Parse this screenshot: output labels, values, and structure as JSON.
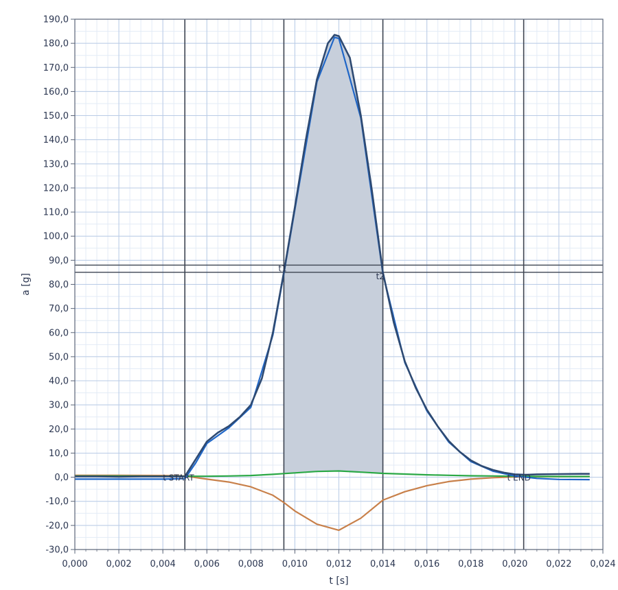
{
  "chart_data": {
    "type": "line",
    "title": "",
    "xlabel": "t [s]",
    "ylabel": "a [g]",
    "xlim": [
      0.0,
      0.024
    ],
    "ylim": [
      -30.0,
      190.0
    ],
    "grid": true,
    "x_ticks": [
      "0,000",
      "0,002",
      "0,004",
      "0,006",
      "0,008",
      "0,010",
      "0,012",
      "0,014",
      "0,016",
      "0,018",
      "0,020",
      "0,022",
      "0,024"
    ],
    "y_ticks": [
      "-30,0",
      "-20,0",
      "-10,0",
      "0,0",
      "10,0",
      "20,0",
      "30,0",
      "40,0",
      "50,0",
      "60,0",
      "70,0",
      "80,0",
      "90,0",
      "100,0",
      "110,0",
      "120,0",
      "130,0",
      "140,0",
      "150,0",
      "160,0",
      "170,0",
      "180,0",
      "190,0"
    ],
    "markers": {
      "t_start": {
        "label": "t START",
        "x": 0.005
      },
      "t1": {
        "label": "t1",
        "x": 0.0095
      },
      "t2": {
        "label": "t2",
        "x": 0.014
      },
      "t_end": {
        "label": "t END",
        "x": 0.0204
      }
    },
    "threshold_lines": [
      88.0,
      85.0
    ],
    "shaded_region": {
      "x_from": 0.0095,
      "x_to": 0.014
    },
    "series": [
      {
        "key": "resultant",
        "color": "#2e4a72",
        "points": [
          [
            0.0,
            0.3
          ],
          [
            0.001,
            0.3
          ],
          [
            0.002,
            0.2
          ],
          [
            0.003,
            0.3
          ],
          [
            0.004,
            0.3
          ],
          [
            0.005,
            0.3
          ],
          [
            0.0055,
            7.5
          ],
          [
            0.006,
            14.8
          ],
          [
            0.0065,
            18.5
          ],
          [
            0.007,
            21.2
          ],
          [
            0.0075,
            25.0
          ],
          [
            0.008,
            30.0
          ],
          [
            0.0085,
            41.0
          ],
          [
            0.009,
            60.0
          ],
          [
            0.0095,
            85.0
          ],
          [
            0.01,
            112.0
          ],
          [
            0.0105,
            140.0
          ],
          [
            0.011,
            165.0
          ],
          [
            0.0115,
            180.0
          ],
          [
            0.0118,
            183.5
          ],
          [
            0.012,
            183.0
          ],
          [
            0.0125,
            174.0
          ],
          [
            0.013,
            150.0
          ],
          [
            0.0135,
            119.0
          ],
          [
            0.014,
            85.0
          ],
          [
            0.0145,
            64.0
          ],
          [
            0.015,
            48.0
          ],
          [
            0.0155,
            37.0
          ],
          [
            0.016,
            28.0
          ],
          [
            0.0165,
            21.0
          ],
          [
            0.017,
            15.0
          ],
          [
            0.0175,
            10.5
          ],
          [
            0.018,
            7.0
          ],
          [
            0.0185,
            4.6
          ],
          [
            0.019,
            3.0
          ],
          [
            0.0195,
            1.9
          ],
          [
            0.02,
            1.2
          ],
          [
            0.0205,
            1.0
          ],
          [
            0.021,
            1.2
          ],
          [
            0.022,
            1.3
          ],
          [
            0.023,
            1.4
          ],
          [
            0.0234,
            1.4
          ]
        ]
      },
      {
        "key": "axis-x",
        "color": "#1f66c7",
        "points": [
          [
            0.0,
            -0.8
          ],
          [
            0.002,
            -0.8
          ],
          [
            0.004,
            -0.8
          ],
          [
            0.005,
            -0.6
          ],
          [
            0.0055,
            6.0
          ],
          [
            0.006,
            14.0
          ],
          [
            0.007,
            20.5
          ],
          [
            0.008,
            29.0
          ],
          [
            0.009,
            59.0
          ],
          [
            0.0095,
            84.5
          ],
          [
            0.01,
            111.0
          ],
          [
            0.011,
            164.0
          ],
          [
            0.0118,
            182.5
          ],
          [
            0.012,
            182.0
          ],
          [
            0.013,
            149.0
          ],
          [
            0.014,
            84.5
          ],
          [
            0.015,
            47.5
          ],
          [
            0.016,
            27.5
          ],
          [
            0.017,
            14.5
          ],
          [
            0.018,
            6.5
          ],
          [
            0.019,
            2.5
          ],
          [
            0.02,
            0.5
          ],
          [
            0.021,
            -0.5
          ],
          [
            0.022,
            -0.9
          ],
          [
            0.0234,
            -1.0
          ]
        ]
      },
      {
        "key": "axis-y",
        "color": "#c8804a",
        "points": [
          [
            0.0,
            0.8
          ],
          [
            0.002,
            0.8
          ],
          [
            0.004,
            0.7
          ],
          [
            0.005,
            0.5
          ],
          [
            0.006,
            -0.8
          ],
          [
            0.007,
            -2.0
          ],
          [
            0.008,
            -4.0
          ],
          [
            0.009,
            -7.5
          ],
          [
            0.0095,
            -10.5
          ],
          [
            0.01,
            -14.0
          ],
          [
            0.011,
            -19.5
          ],
          [
            0.012,
            -22.0
          ],
          [
            0.013,
            -17.0
          ],
          [
            0.014,
            -9.5
          ],
          [
            0.015,
            -6.0
          ],
          [
            0.016,
            -3.5
          ],
          [
            0.017,
            -1.8
          ],
          [
            0.018,
            -0.8
          ],
          [
            0.019,
            -0.2
          ],
          [
            0.02,
            0.1
          ],
          [
            0.021,
            0.2
          ],
          [
            0.0234,
            0.3
          ]
        ]
      },
      {
        "key": "axis-z",
        "color": "#2aa845",
        "points": [
          [
            0.0,
            0.5
          ],
          [
            0.002,
            0.5
          ],
          [
            0.004,
            0.4
          ],
          [
            0.005,
            0.4
          ],
          [
            0.006,
            0.4
          ],
          [
            0.007,
            0.5
          ],
          [
            0.008,
            0.7
          ],
          [
            0.009,
            1.2
          ],
          [
            0.0095,
            1.5
          ],
          [
            0.01,
            1.8
          ],
          [
            0.011,
            2.4
          ],
          [
            0.012,
            2.6
          ],
          [
            0.013,
            2.1
          ],
          [
            0.014,
            1.6
          ],
          [
            0.015,
            1.3
          ],
          [
            0.016,
            1.0
          ],
          [
            0.017,
            0.8
          ],
          [
            0.018,
            0.6
          ],
          [
            0.019,
            0.5
          ],
          [
            0.02,
            0.4
          ],
          [
            0.021,
            0.3
          ],
          [
            0.022,
            0.3
          ],
          [
            0.0234,
            0.3
          ]
        ]
      }
    ]
  },
  "colors": {
    "major_grid": "#b9cbe6",
    "minor_grid": "#e3ebf6",
    "frame": "#5a6478",
    "shade": "#c7cfdb",
    "marker_line": "#3c4350"
  }
}
